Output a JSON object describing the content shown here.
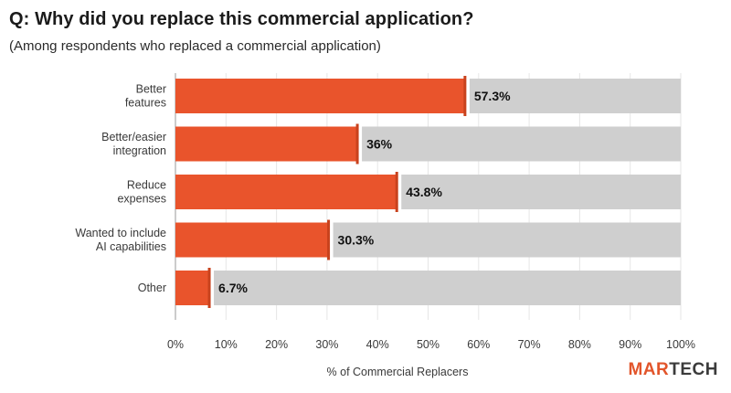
{
  "header": {
    "title": "Q: Why did you replace this commercial application?",
    "subtitle": "(Among respondents who replaced a commercial application)"
  },
  "brand": {
    "logo_part1": "MAR",
    "logo_part2": "TECH",
    "accent_color": "#e9542c",
    "track_color": "#cfcfcf"
  },
  "chart_data": {
    "type": "bar",
    "orientation": "horizontal",
    "title": "Q: Why did you replace this commercial application?",
    "subtitle": "(Among respondents who replaced a commercial application)",
    "categories": [
      [
        "Better",
        "features"
      ],
      [
        "Better/easier",
        "integration"
      ],
      [
        "Reduce",
        "expenses"
      ],
      [
        "Wanted to include",
        "AI capabilities"
      ],
      [
        "Other"
      ]
    ],
    "values": [
      57.3,
      36,
      43.8,
      30.3,
      6.7
    ],
    "value_labels": [
      "57.3%",
      "36%",
      "43.8%",
      "30.3%",
      "6.7%"
    ],
    "xlim": [
      0,
      100
    ],
    "xticks": [
      "0%",
      "10%",
      "20%",
      "30%",
      "40%",
      "50%",
      "60%",
      "70%",
      "80%",
      "90%",
      "100%"
    ],
    "xlabel": "% of Commercial Replacers",
    "ylabel": "",
    "grid": true
  }
}
